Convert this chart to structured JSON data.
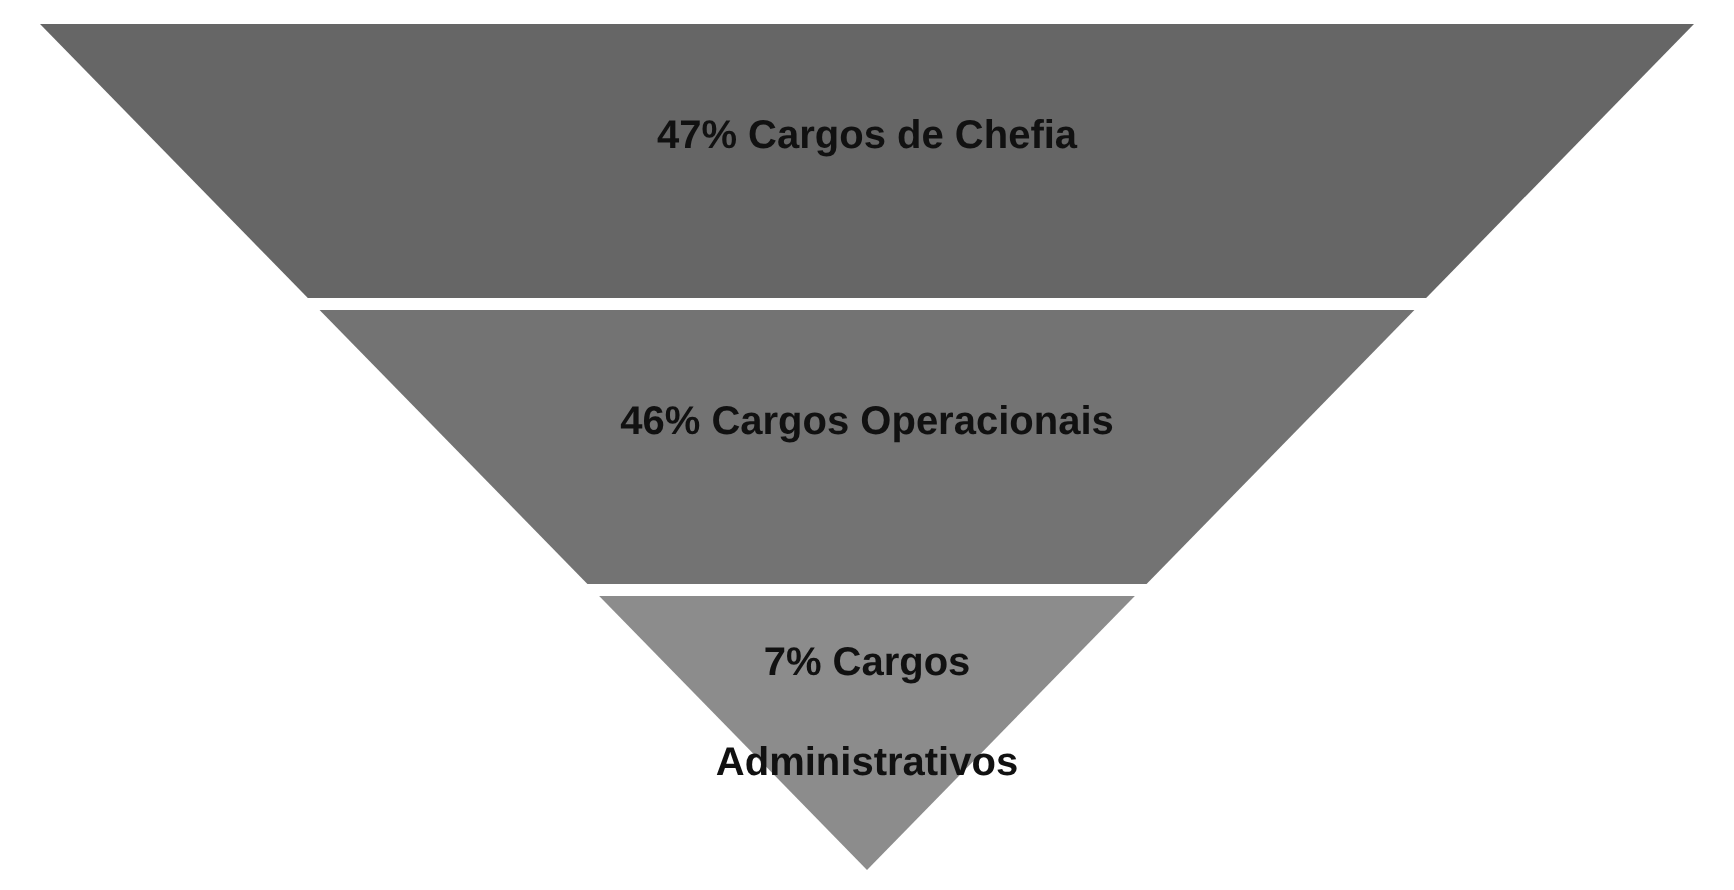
{
  "chart_data": {
    "type": "other",
    "categories": [
      "Cargos de Chefia",
      "Cargos Operacionais",
      "Cargos Administrativos"
    ],
    "values": [
      47,
      46,
      7
    ],
    "value_labels": [
      "47%",
      "46%",
      "7%"
    ],
    "colors": [
      "#666666",
      "#737373",
      "#8c8c8c"
    ],
    "data_labels": true
  }
}
